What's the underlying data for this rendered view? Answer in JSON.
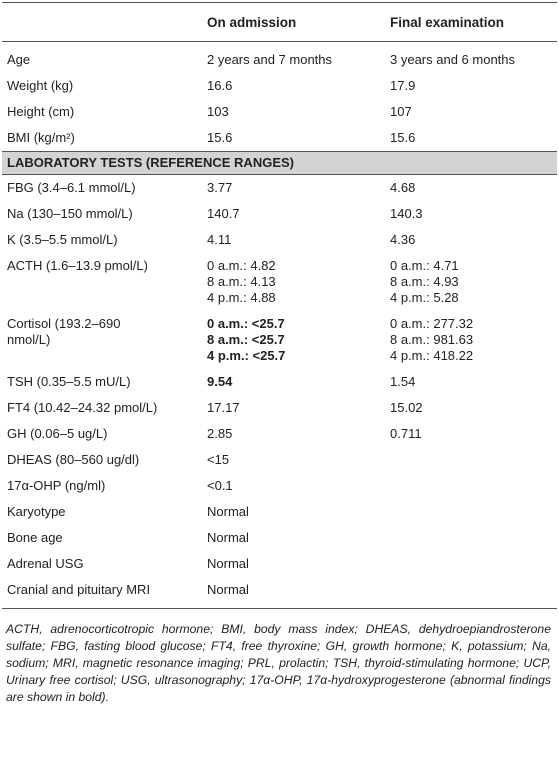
{
  "table": {
    "headers": [
      "On admission",
      "Final examination"
    ],
    "rows": [
      {
        "label": [
          "Age"
        ],
        "admission": [
          "2 years and 7 months"
        ],
        "final": [
          "3 years and 6 months"
        ]
      },
      {
        "label": [
          "Weight (kg)"
        ],
        "admission": [
          "16.6"
        ],
        "final": [
          "17.9"
        ]
      },
      {
        "label": [
          "Height (cm)"
        ],
        "admission": [
          "103"
        ],
        "final": [
          "107"
        ]
      },
      {
        "label": [
          "BMI (kg/m²)"
        ],
        "admission": [
          "15.6"
        ],
        "final": [
          "15.6"
        ]
      }
    ],
    "section": "LABORATORY TESTS (REFERENCE RANGES)",
    "lab_rows": [
      {
        "label": [
          "FBG (3.4–6.1 mmol/L)"
        ],
        "admission": [
          "3.77"
        ],
        "final": [
          "4.68"
        ]
      },
      {
        "label": [
          "Na (130–150 mmol/L)"
        ],
        "admission": [
          "140.7"
        ],
        "final": [
          "140.3"
        ]
      },
      {
        "label": [
          "K (3.5–5.5 mmol/L)"
        ],
        "admission": [
          "4.11"
        ],
        "final": [
          "4.36"
        ]
      },
      {
        "label": [
          "ACTH (1.6–13.9 pmol/L)"
        ],
        "admission": [
          "0 a.m.: 4.82",
          "8 a.m.: 4.13",
          "4 p.m.: 4.88"
        ],
        "final": [
          "0 a.m.: 4.71",
          "8 a.m.: 4.93",
          "4 p.m.: 5.28"
        ]
      },
      {
        "label": [
          "Cortisol (193.2–690",
          "nmol/L)"
        ],
        "admission": [
          "0 a.m.: <25.7",
          "8 a.m.: <25.7",
          "4 p.m.: <25.7"
        ],
        "final": [
          "0 a.m.: 277.32",
          "8 a.m.: 981.63",
          "4 p.m.: 418.22"
        ],
        "bold": "admission"
      },
      {
        "label": [
          "TSH (0.35–5.5 mU/L)"
        ],
        "admission": [
          "9.54"
        ],
        "final": [
          "1.54"
        ],
        "bold": "admission"
      },
      {
        "label": [
          "FT4 (10.42–24.32 pmol/L)"
        ],
        "admission": [
          "17.17"
        ],
        "final": [
          "15.02"
        ]
      },
      {
        "label": [
          "GH (0.06–5 ug/L)"
        ],
        "admission": [
          "2.85"
        ],
        "final": [
          "0.711"
        ]
      },
      {
        "label": [
          "DHEAS (80–560 ug/dl)"
        ],
        "admission": [
          "<15"
        ]
      },
      {
        "label": [
          "17α-OHP (ng/ml)"
        ],
        "admission": [
          "<0.1"
        ]
      },
      {
        "label": [
          "Karyotype"
        ],
        "admission": [
          "Normal"
        ]
      },
      {
        "label": [
          "Bone age"
        ],
        "admission": [
          "Normal"
        ]
      },
      {
        "label": [
          "Adrenal USG"
        ],
        "admission": [
          "Normal"
        ]
      },
      {
        "label": [
          "Cranial and pituitary MRI"
        ],
        "admission": [
          "Normal"
        ]
      }
    ]
  },
  "footnote": "ACTH, adrenocorticotropic hormone; BMI, body mass index; DHEAS, dehydroepiandrosterone sulfate; FBG, fasting blood glucose; FT4, free thyroxine; GH, growth hormone; K, potassium; Na, sodium; MRI, magnetic resonance imaging; PRL, prolactin; TSH, thyroid-stimulating hormone; UCP, Urinary free cortisol; USG, ultrasonography; 17α-OHP, 17α-hydroxyprogesterone (abnormal findings are shown in bold)."
}
